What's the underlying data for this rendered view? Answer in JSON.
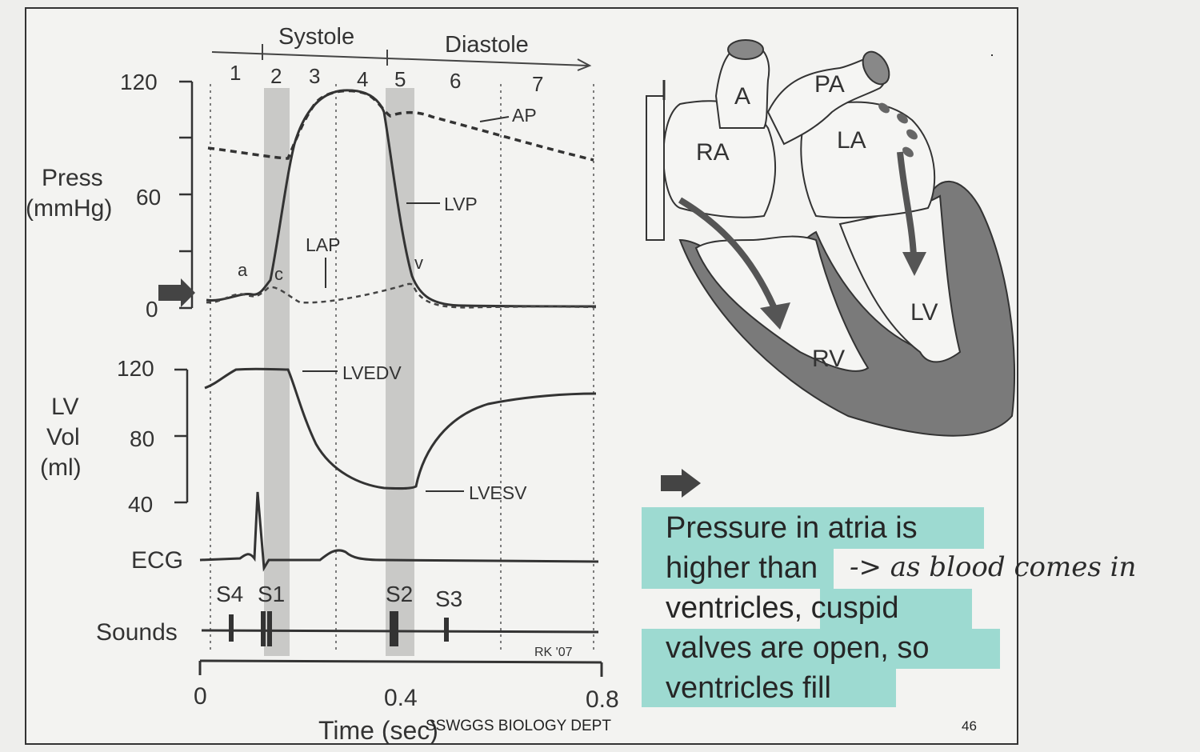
{
  "phases": {
    "systole": "Systole",
    "diastole": "Diastole",
    "numbers": [
      "1",
      "2",
      "3",
      "4",
      "5",
      "6",
      "7"
    ]
  },
  "pressure_axis": {
    "label_line1": "Press",
    "label_line2": "(mmHg)",
    "ticks": [
      "120",
      "60",
      "0"
    ]
  },
  "volume_axis": {
    "label_line1": "LV",
    "label_line2": "Vol",
    "label_line3": "(ml)",
    "ticks": [
      "120",
      "80",
      "40"
    ]
  },
  "traces": {
    "ap": "AP",
    "lvp": "LVP",
    "lap": "LAP",
    "a_wave": "a",
    "c_wave": "c",
    "v_wave": "v",
    "lvedv": "LVEDV",
    "lvesv": "LVESV",
    "ecg": "ECG",
    "sounds": "Sounds"
  },
  "heart_sounds": {
    "s4": "S4",
    "s1": "S1",
    "s2": "S2",
    "s3": "S3"
  },
  "time_axis": {
    "ticks": [
      "0",
      "0.4",
      "0.8"
    ],
    "label": "Time (sec)",
    "signature": "RK '07"
  },
  "heart": {
    "a": "A",
    "pa": "PA",
    "ra": "RA",
    "la": "LA",
    "rv": "RV",
    "lv": "LV"
  },
  "caption": {
    "line1": "Pressure in atria is",
    "line2": "higher than",
    "line3": "ventricles, cuspid",
    "line4": "valves are open, so",
    "line5": "ventricles fill",
    "highlight_color": "#8fd6cc",
    "handwritten": "-> as blood comes in"
  },
  "footer": {
    "dept": "SSWGGS BIOLOGY DEPT",
    "page": "46"
  }
}
